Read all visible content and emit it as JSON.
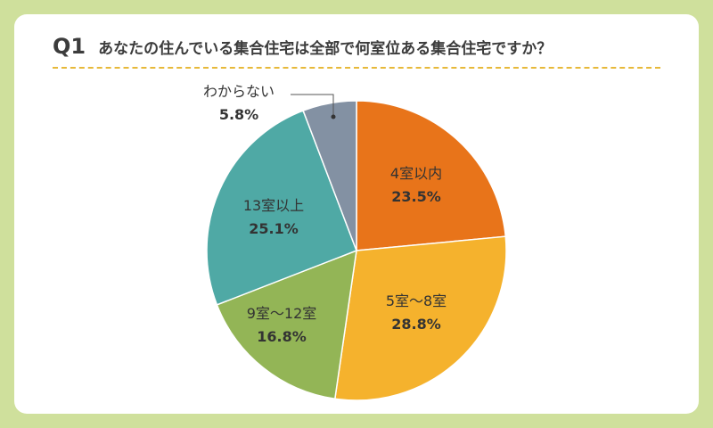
{
  "header": {
    "question_number": "Q1",
    "question_text": "あなたの住んでいる集合住宅は全部で何室位ある集合住宅ですか？"
  },
  "chart_data": {
    "type": "pie",
    "start": "12 o'clock",
    "direction": "clockwise",
    "slices": [
      {
        "label": "4室以内",
        "value": 23.5,
        "value_label": "23.5%",
        "color": "#e8741a"
      },
      {
        "label": "5室〜8室",
        "value": 28.8,
        "value_label": "28.8%",
        "color": "#f5b22d"
      },
      {
        "label": "9室〜12室",
        "value": 16.8,
        "value_label": "16.8%",
        "color": "#93b556"
      },
      {
        "label": "13室以上",
        "value": 25.1,
        "value_label": "25.1%",
        "color": "#4fa9a5"
      },
      {
        "label": "わからない",
        "value": 5.8,
        "value_label": "5.8%",
        "color": "#8391a3"
      }
    ]
  }
}
